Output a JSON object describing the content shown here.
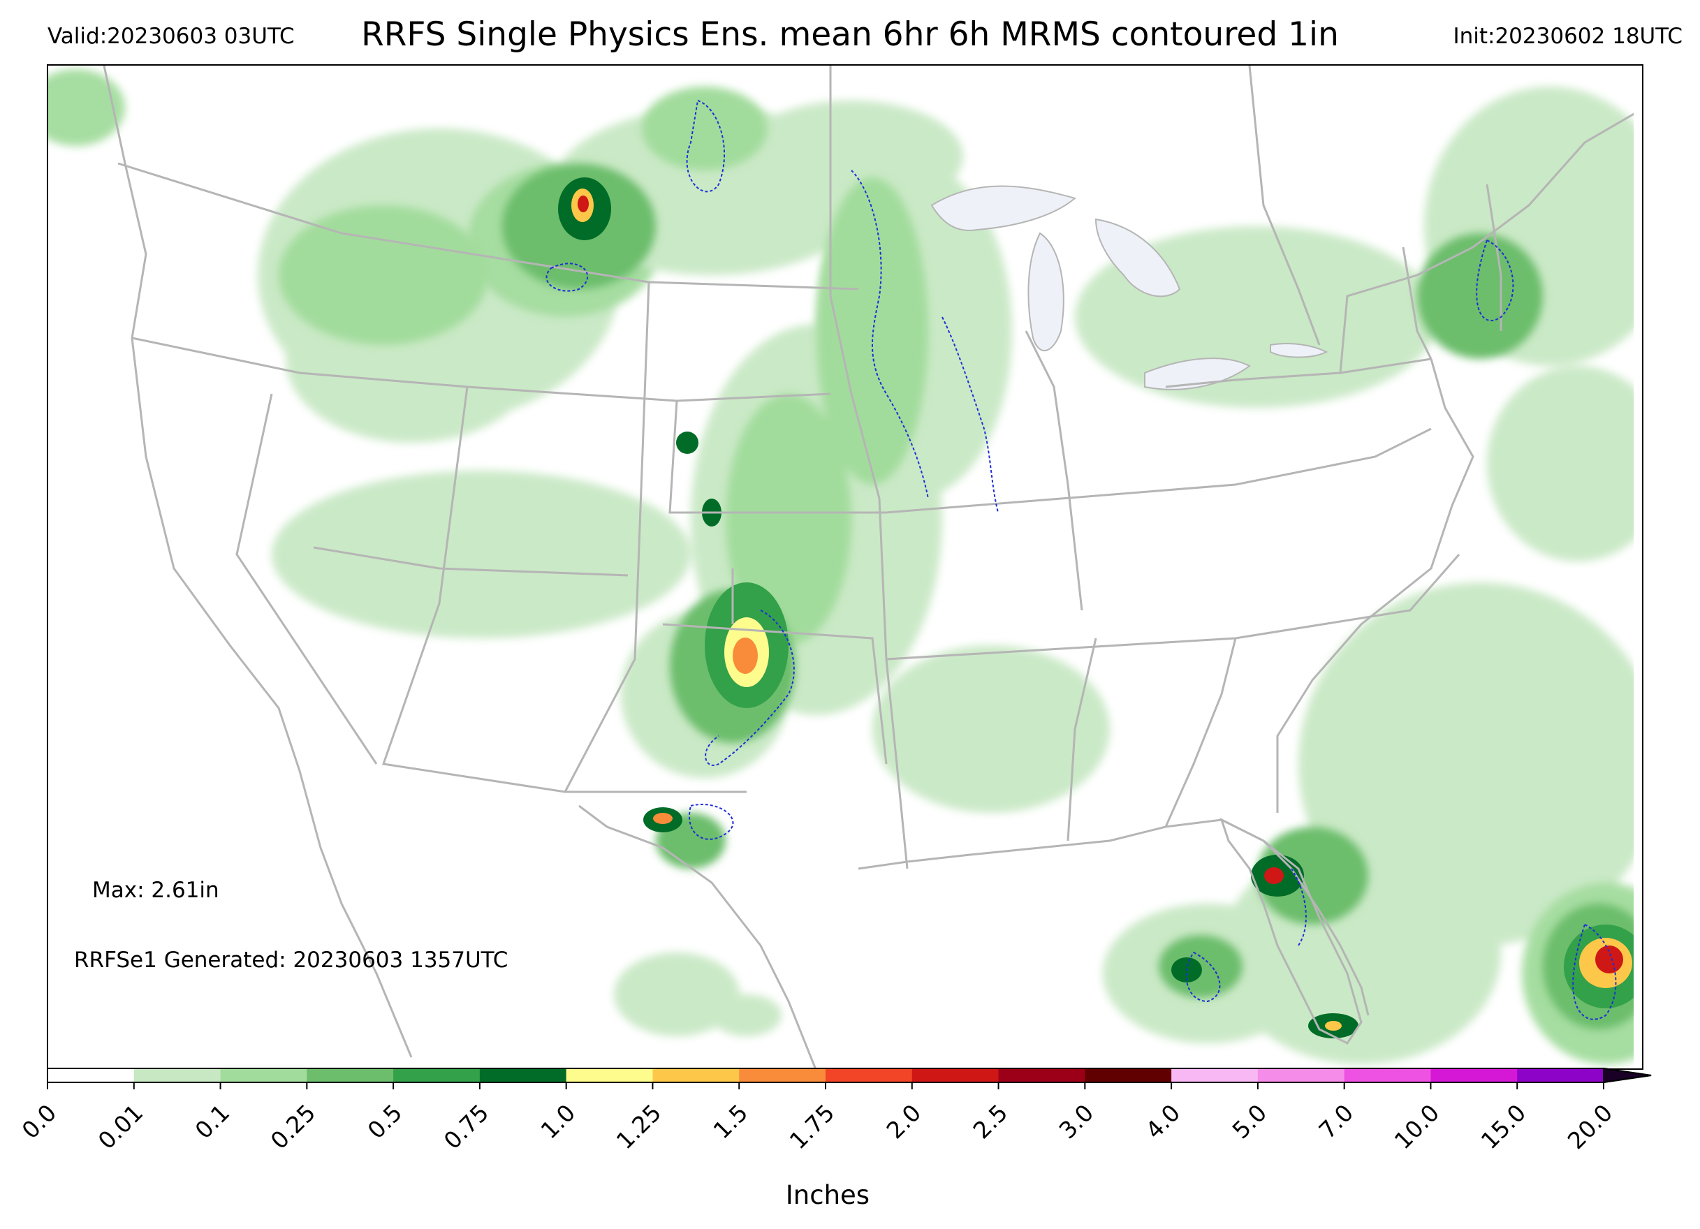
{
  "header": {
    "valid": "Valid:20230603 03UTC",
    "title": "RRFS Single Physics Ens. mean 6hr 6h MRMS contoured 1in",
    "init": "Init:20230602 18UTC"
  },
  "map": {
    "max_label": "Max: 2.61in",
    "generated_label": "RRFSe1 Generated: 20230603 1357UTC",
    "contour_color": "#1f2fd6",
    "border_color": "#b5b5b5",
    "lake_color": "#eef2f8"
  },
  "colorbar": {
    "label": "Inches",
    "ticks": [
      "0.0",
      "0.01",
      "0.1",
      "0.25",
      "0.5",
      "0.75",
      "1.0",
      "1.25",
      "1.5",
      "1.75",
      "2.0",
      "2.5",
      "3.0",
      "4.0",
      "5.0",
      "7.0",
      "10.0",
      "15.0",
      "20.0"
    ],
    "colors": [
      "#ffffff",
      "#c8e8c4",
      "#a2dc9c",
      "#6cbd6c",
      "#33a04a",
      "#006c27",
      "#fffc8e",
      "#fdc84a",
      "#f98c3a",
      "#f24426",
      "#cf1716",
      "#9c0018",
      "#600000",
      "#f8b8f4",
      "#f68ce9",
      "#ee52e2",
      "#d418d6",
      "#8d03c8"
    ],
    "extend_color": "#1a0026"
  }
}
